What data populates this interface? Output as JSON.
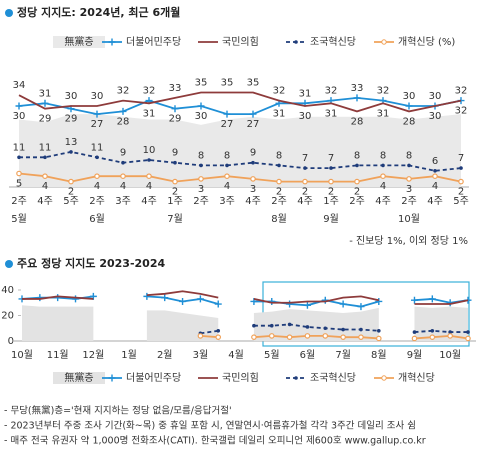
{
  "chart_data": [
    {
      "type": "line",
      "title": "정당 지지도: 2024년, 최근 6개월",
      "categories": [
        "2주",
        "4주",
        "5주",
        "2주",
        "3주",
        "4주",
        "1주",
        "2주",
        "3주",
        "4주",
        "2주",
        "4주",
        "1주",
        "2주",
        "4주",
        "2주",
        "4주",
        "5주"
      ],
      "months": [
        "5월",
        null,
        null,
        "6월",
        null,
        null,
        "7월",
        null,
        null,
        null,
        "8월",
        null,
        "9월",
        null,
        null,
        "10월",
        null,
        null
      ],
      "ylim": [
        0,
        40
      ],
      "data_labels": true,
      "note": "- 진보당 1%, 이외 정당 1%",
      "series": [
        {
          "name": "無黨층",
          "color": "#e9e9e9",
          "style": "area",
          "values": [
            25,
            24,
            27,
            27,
            26,
            25,
            25,
            23,
            25,
            26,
            25,
            26,
            26,
            26,
            26,
            25,
            26,
            27
          ]
        },
        {
          "name": "더불어민주당",
          "color": "#1f8fd6",
          "style": "solid",
          "marker": "plus",
          "label_position": "auto",
          "values": [
            30,
            31,
            29,
            27,
            28,
            32,
            29,
            30,
            27,
            27,
            31,
            31,
            32,
            33,
            32,
            30,
            30,
            32
          ]
        },
        {
          "name": "국민의힘",
          "color": "#8e3b3b",
          "style": "solid",
          "marker": "none",
          "label_position": "auto",
          "values": [
            34,
            29,
            30,
            30,
            32,
            31,
            33,
            35,
            35,
            35,
            32,
            30,
            31,
            28,
            31,
            28,
            30,
            32
          ]
        },
        {
          "name": "조국혁신당",
          "color": "#1f3c7a",
          "style": "dashed",
          "marker": "dot",
          "label_position": "above",
          "values": [
            11,
            11,
            13,
            11,
            9,
            10,
            9,
            8,
            8,
            9,
            8,
            7,
            7,
            8,
            8,
            8,
            6,
            7
          ]
        },
        {
          "name": "개혁신당 (%)",
          "color": "#f0a25a",
          "style": "solid",
          "marker": "circle",
          "label_position": "below",
          "values": [
            5,
            4,
            2,
            4,
            4,
            4,
            2,
            3,
            4,
            3,
            2,
            2,
            2,
            2,
            4,
            3,
            4,
            2
          ]
        }
      ]
    },
    {
      "type": "line",
      "title": "주요 정당 지지도 2023-2024",
      "categories": [
        "10월",
        null,
        "11월",
        null,
        "12월",
        null,
        "1월",
        null,
        "2월",
        null,
        "3월",
        null,
        "4월",
        null,
        "5월",
        null,
        "6월",
        null,
        "7월",
        null,
        "8월",
        null,
        "9월",
        null,
        "10월",
        null
      ],
      "ylim": [
        0,
        40
      ],
      "yticks": [
        0,
        20,
        40
      ],
      "data_labels": false,
      "series": [
        {
          "name": "無黨층",
          "color": "#e3e3e3",
          "style": "area",
          "values": [
            28,
            27,
            27,
            27,
            27,
            null,
            null,
            24,
            24,
            22,
            20,
            18,
            null,
            22,
            23,
            25,
            24,
            23,
            22,
            23,
            26,
            null,
            27,
            26,
            27,
            26
          ]
        },
        {
          "name": "더불어민주당",
          "color": "#1f8fd6",
          "style": "solid",
          "marker": "plus",
          "values": [
            33,
            34,
            34,
            33,
            35,
            null,
            null,
            35,
            34,
            31,
            33,
            29,
            null,
            31,
            31,
            29,
            28,
            32,
            29,
            27,
            31,
            null,
            32,
            33,
            30,
            32
          ]
        },
        {
          "name": "국민의힘",
          "color": "#8e3b3b",
          "style": "solid",
          "marker": "none",
          "values": [
            33,
            33,
            35,
            34,
            33,
            null,
            null,
            36,
            37,
            39,
            37,
            34,
            null,
            33,
            30,
            30,
            31,
            31,
            34,
            35,
            32,
            null,
            29,
            29,
            29,
            32
          ]
        },
        {
          "name": "조국혁신당",
          "color": "#1f3c7a",
          "style": "dashed",
          "marker": "dot",
          "values": [
            null,
            null,
            null,
            null,
            null,
            null,
            null,
            null,
            null,
            null,
            6,
            8,
            null,
            12,
            12,
            13,
            11,
            10,
            9,
            9,
            8,
            null,
            7,
            8,
            7,
            7
          ]
        },
        {
          "name": "개혁신당",
          "color": "#f0a25a",
          "style": "solid",
          "marker": "circle",
          "values": [
            null,
            null,
            null,
            null,
            null,
            null,
            null,
            null,
            null,
            null,
            4,
            3,
            null,
            3,
            4,
            3,
            4,
            4,
            3,
            3,
            2,
            null,
            2,
            3,
            4,
            2
          ]
        }
      ]
    }
  ],
  "footnotes": [
    "- 무당(無黨)층='현재 지지하는 정당 없음/모름/응답거절'",
    "- 2023년부터 주중 조사 기간(화~목) 중 휴일 포함 시, 연말연시·여름휴가철 각각 3주간 데일리 조사 쉼",
    "- 매주 전국 유권자 약 1,000명 전화조사(CATI). 한국갤럽 데일리 오피니언 제600호 www.gallup.co.kr"
  ]
}
